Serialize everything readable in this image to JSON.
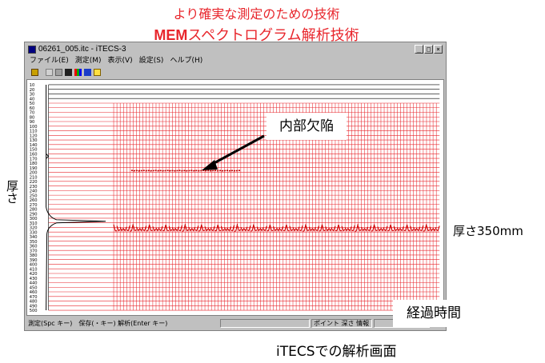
{
  "heading_line1": "より確実な測定のための技術",
  "heading_line2_bold": "MEM",
  "heading_line2_rest": "スペクトログラム解析技術",
  "window": {
    "title": "06261_005.itc - iTECS-3",
    "buttons": [
      "_",
      "□",
      "×"
    ],
    "menu": [
      "ファイル(E)",
      "測定(M)",
      "表示(V)",
      "設定(S)",
      "ヘルプ(H)"
    ],
    "status_left": "測定(Spc キー)　保存(・キー) 解析(Enter キー)",
    "status_panel": "ポイント 深さ 情報"
  },
  "depth_ticks": [
    "10",
    "20",
    "30",
    "40",
    "50",
    "60",
    "70",
    "80",
    "90",
    "100",
    "110",
    "120",
    "130",
    "140",
    "150",
    "160",
    "170",
    "180",
    "190",
    "200",
    "210",
    "220",
    "230",
    "240",
    "250",
    "260",
    "270",
    "280",
    "290",
    "300",
    "310",
    "320",
    "330",
    "340",
    "350",
    "360",
    "370",
    "380",
    "390",
    "400",
    "410",
    "420",
    "430",
    "440",
    "450",
    "460",
    "470",
    "480",
    "490",
    "500"
  ],
  "annotations": {
    "defect": "内部欠陥",
    "thickness_axis": "厚さ",
    "thickness_value": "厚さ350mm",
    "elapsed": "経過時間",
    "caption": "iTECSでの解析画面"
  },
  "colors": {
    "heading": "#e8262c",
    "grid": "#e8262c",
    "trace": "#000000"
  }
}
